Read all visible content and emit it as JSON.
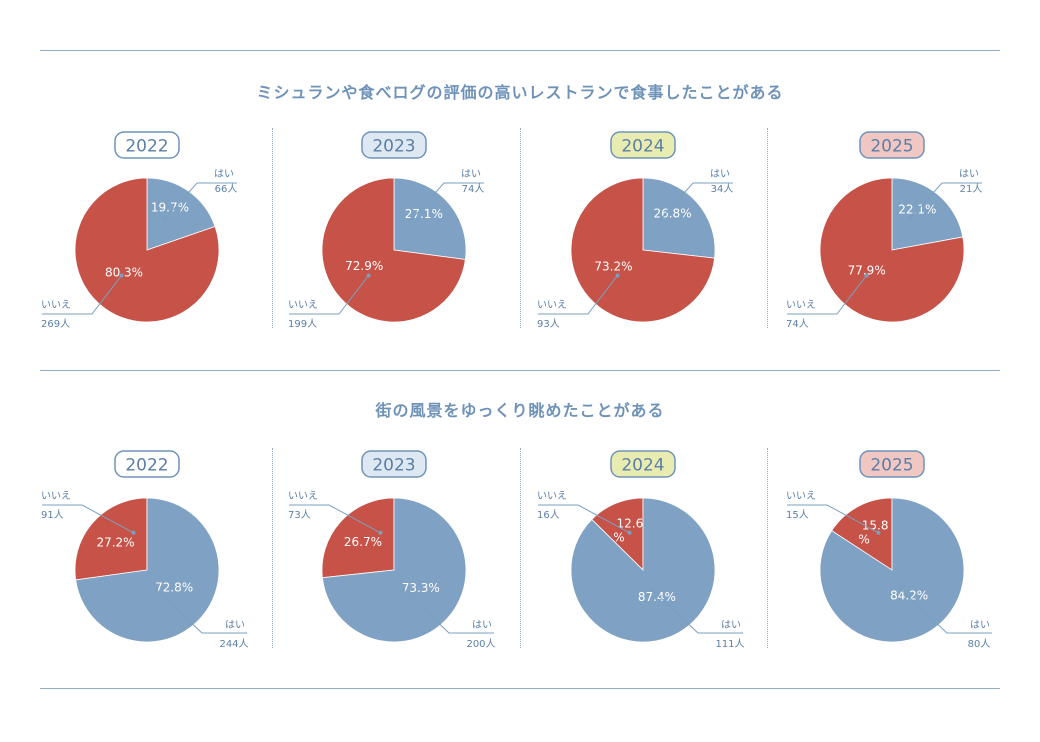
{
  "colors": {
    "yes": "#7fa1c3",
    "no": "#c75247",
    "label_line": "#7aa0c0",
    "label_text": "#5b7fa6",
    "year_2022_bg": "#ffffff",
    "year_2023_bg": "#dde8f2",
    "year_2024_bg": "#e9ecb1",
    "year_2025_bg": "#f1c7c3"
  },
  "sections": [
    {
      "title": "ミシュランや食べログの評価の高いレストランで食事したことがある"
    },
    {
      "title": "街の風景をゆっくり眺めたことがある"
    }
  ],
  "chart_data": [
    {
      "type": "pie",
      "title": "ミシュランや食べログの評価の高いレストランで食事したことがある",
      "subtitle": "2022",
      "categories": [
        "はい",
        "いいえ"
      ],
      "values": [
        19.7,
        80.3
      ],
      "value_labels": [
        "19.7%",
        "80.3%"
      ],
      "counts": [
        "66人",
        "269人"
      ]
    },
    {
      "type": "pie",
      "title": "ミシュランや食べログの評価の高いレストランで食事したことがある",
      "subtitle": "2023",
      "categories": [
        "はい",
        "いいえ"
      ],
      "values": [
        27.1,
        72.9
      ],
      "value_labels": [
        "27.1%",
        "72.9%"
      ],
      "counts": [
        "74人",
        "199人"
      ]
    },
    {
      "type": "pie",
      "title": "ミシュランや食べログの評価の高いレストランで食事したことがある",
      "subtitle": "2024",
      "categories": [
        "はい",
        "いいえ"
      ],
      "values": [
        26.8,
        73.2
      ],
      "value_labels": [
        "26.8%",
        "73.2%"
      ],
      "counts": [
        "34人",
        "93人"
      ]
    },
    {
      "type": "pie",
      "title": "ミシュランや食べログの評価の高いレストランで食事したことがある",
      "subtitle": "2025",
      "categories": [
        "はい",
        "いいえ"
      ],
      "values": [
        22.1,
        77.9
      ],
      "value_labels": [
        "22.1%",
        "77.9%"
      ],
      "counts": [
        "21人",
        "74人"
      ]
    },
    {
      "type": "pie",
      "title": "街の風景をゆっくり眺めたことがある",
      "subtitle": "2022",
      "categories": [
        "いいえ",
        "はい"
      ],
      "values": [
        27.2,
        72.8
      ],
      "value_labels": [
        "27.2%",
        "72.8%"
      ],
      "counts": [
        "91人",
        "244人"
      ]
    },
    {
      "type": "pie",
      "title": "街の風景をゆっくり眺めたことがある",
      "subtitle": "2023",
      "categories": [
        "いいえ",
        "はい"
      ],
      "values": [
        26.7,
        73.3
      ],
      "value_labels": [
        "26.7%",
        "73.3%"
      ],
      "counts": [
        "73人",
        "200人"
      ]
    },
    {
      "type": "pie",
      "title": "街の風景をゆっくり眺めたことがある",
      "subtitle": "2024",
      "categories": [
        "いいえ",
        "はい"
      ],
      "values": [
        12.6,
        87.4
      ],
      "value_labels": [
        "12.6%",
        "87.4%"
      ],
      "counts": [
        "16人",
        "111人"
      ]
    },
    {
      "type": "pie",
      "title": "街の風景をゆっくり眺めたことがある",
      "subtitle": "2025",
      "categories": [
        "いいえ",
        "はい"
      ],
      "values": [
        15.8,
        84.2
      ],
      "value_labels": [
        "15.8%",
        "84.2%"
      ],
      "counts": [
        "15人",
        "80人"
      ]
    }
  ]
}
